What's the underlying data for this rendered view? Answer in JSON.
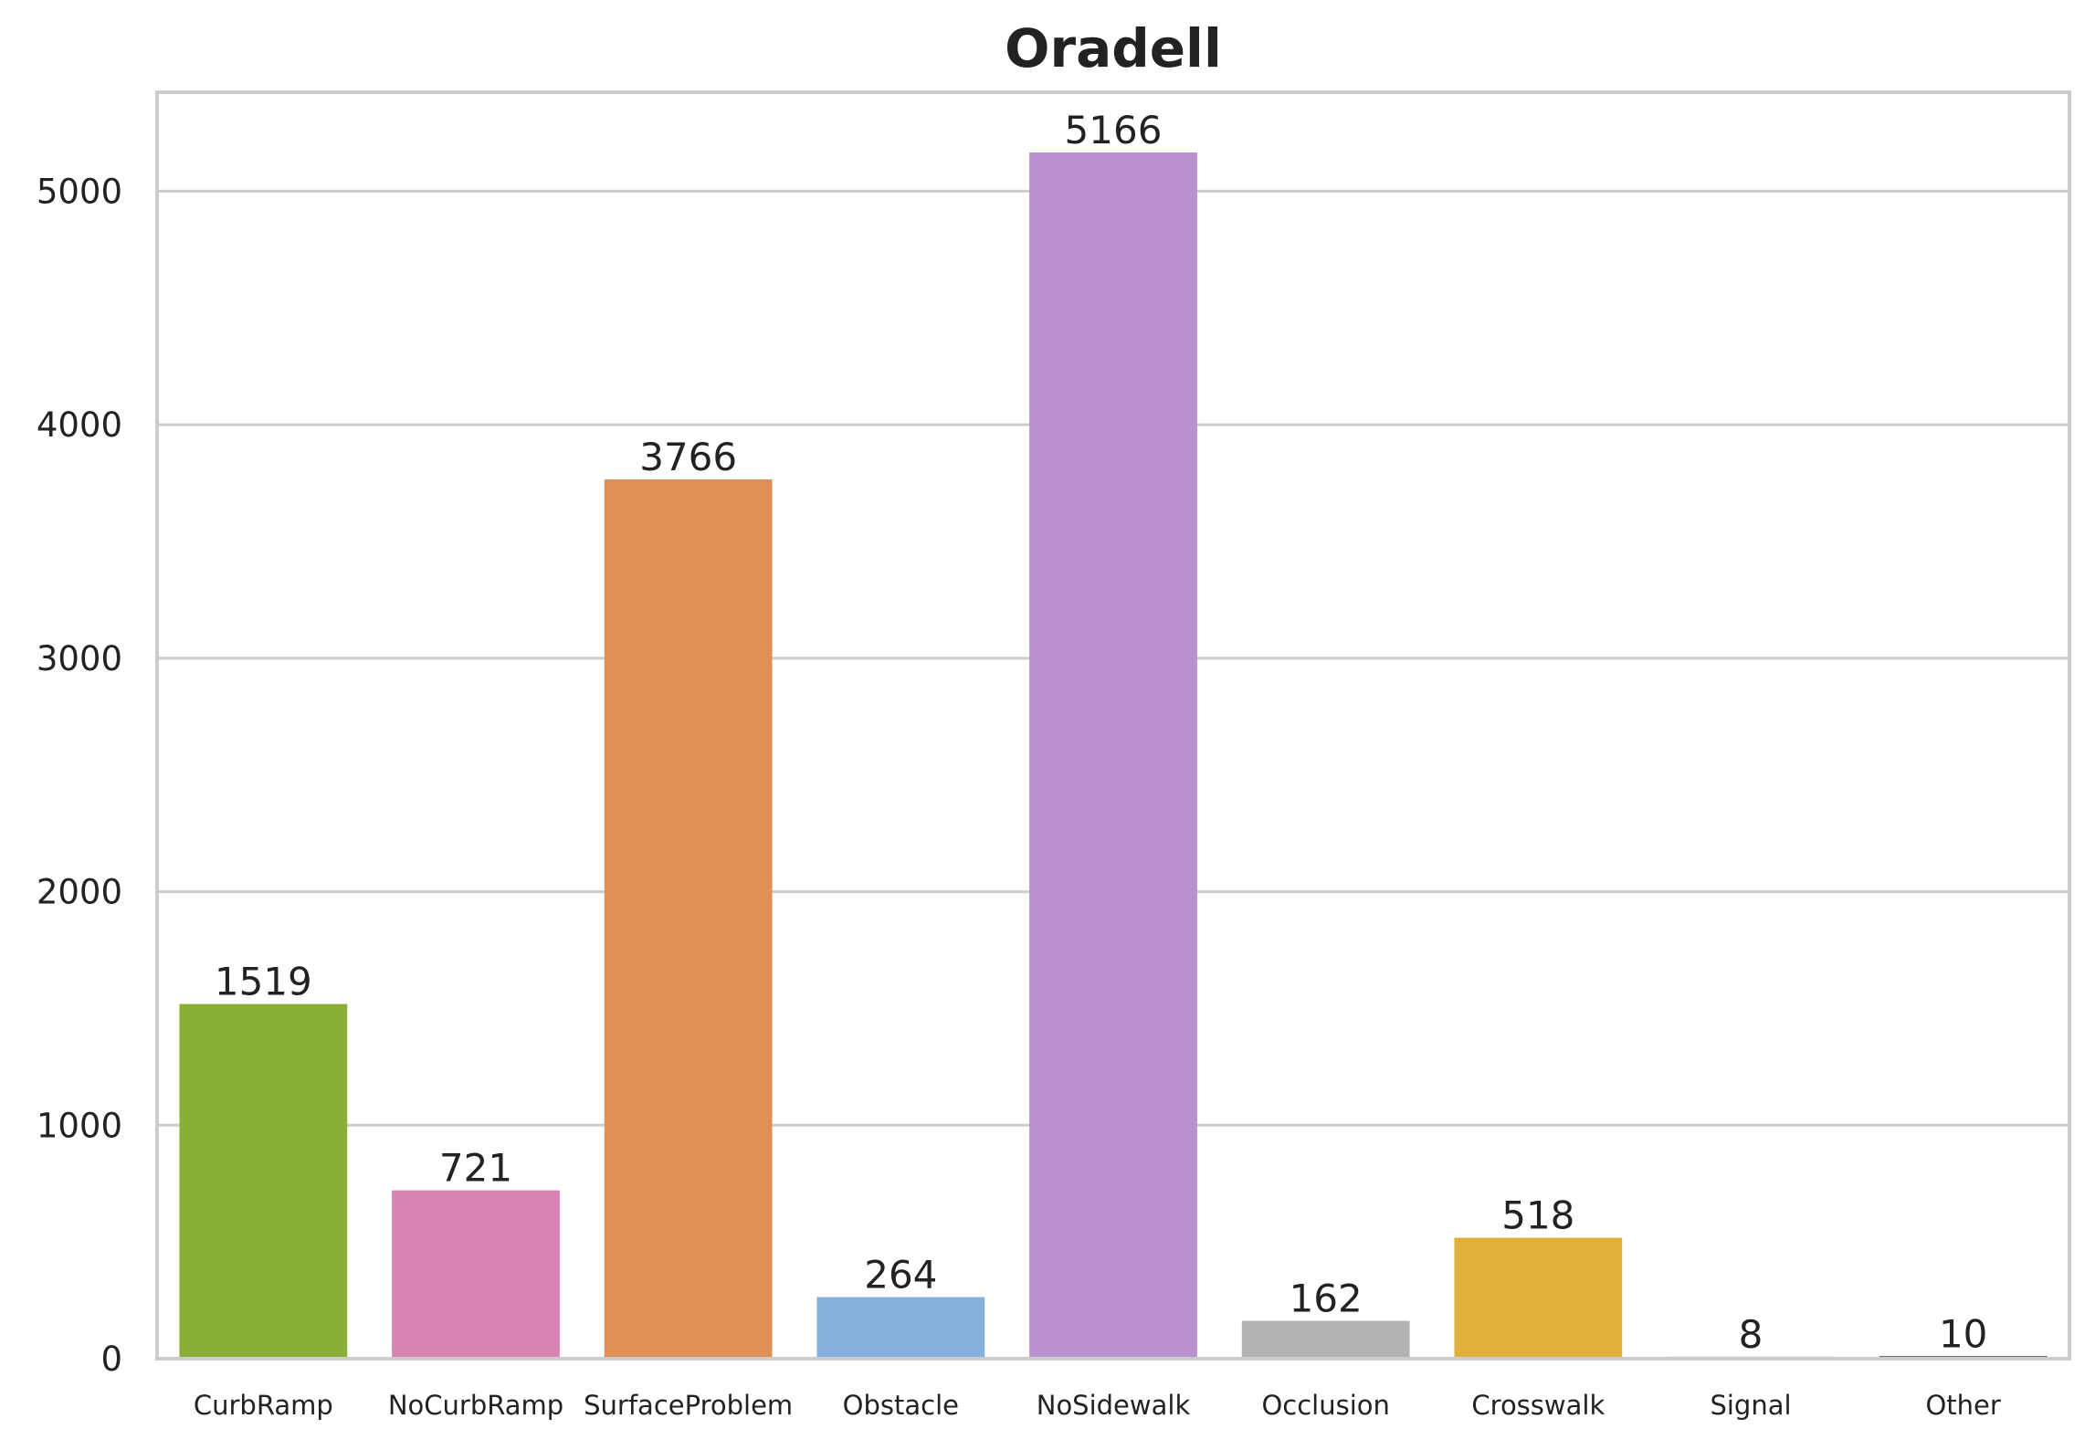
{
  "chart_data": {
    "type": "bar",
    "title": "Oradell",
    "xlabel": "",
    "ylabel": "",
    "categories": [
      "CurbRamp",
      "NoCurbRamp",
      "SurfaceProblem",
      "Obstacle",
      "NoSidewalk",
      "Occlusion",
      "Crosswalk",
      "Signal",
      "Other"
    ],
    "values": [
      1519,
      721,
      3766,
      264,
      5166,
      162,
      518,
      8,
      10
    ],
    "data_labels": [
      "1519",
      "721",
      "3766",
      "264",
      "5166",
      "162",
      "518",
      "8",
      "10"
    ],
    "colors": [
      "#88b035",
      "#d885b4",
      "#df9056",
      "#86b1dc",
      "#ba91cf",
      "#b3b3b3",
      "#dfb13a",
      "#000000",
      "#000000"
    ],
    "yticks": [
      0,
      1000,
      2000,
      3000,
      4000,
      5000
    ],
    "ytick_labels": [
      "0",
      "1000",
      "2000",
      "3000",
      "4000",
      "5000"
    ],
    "ylim": [
      0,
      5424
    ],
    "grid": "horizontal",
    "legend": "none"
  }
}
